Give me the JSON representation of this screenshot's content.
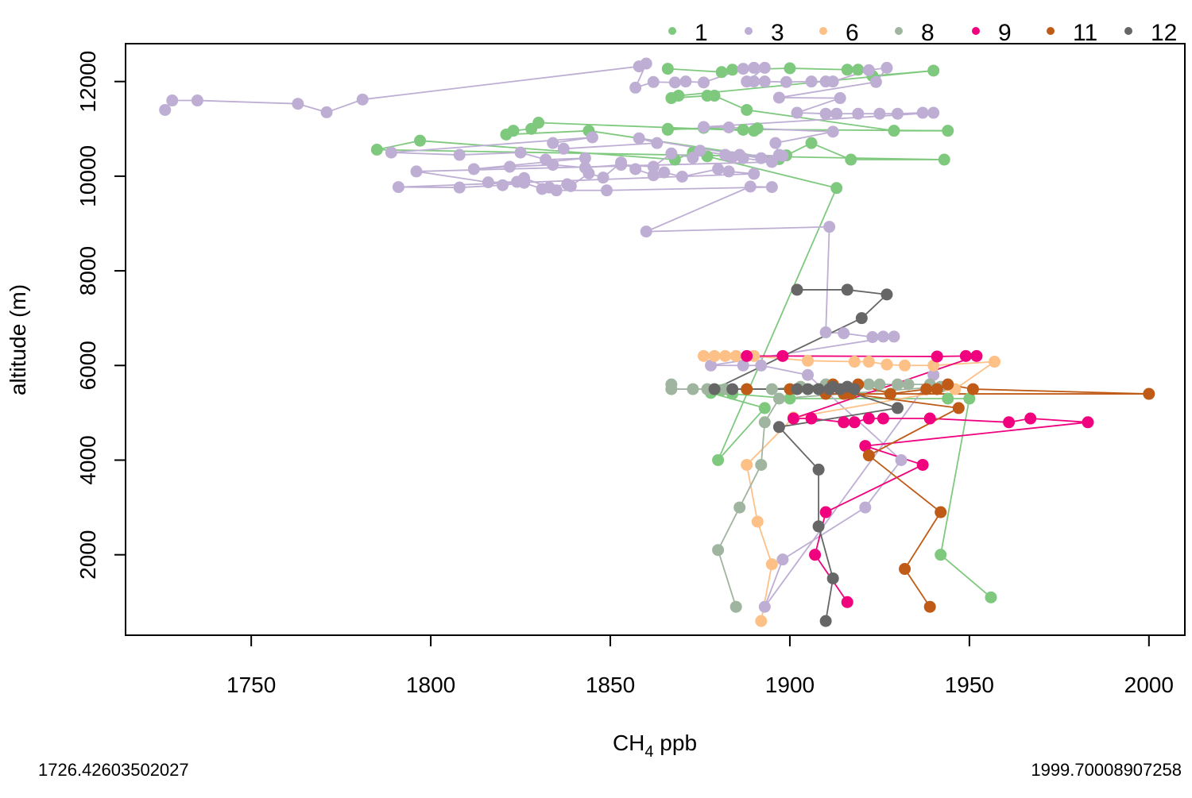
{
  "chart_data": {
    "type": "scatter",
    "xlabel_main": "CH",
    "xlabel_sub": "4",
    "xlabel_rest": " ppb",
    "ylabel": "altitude (m)",
    "xlim": [
      1715,
      2010
    ],
    "ylim": [
      300,
      12800
    ],
    "x_ticks": [
      1750,
      1800,
      1850,
      1900,
      1950,
      2000
    ],
    "x_tick_labels": [
      "1750",
      "1800",
      "1850",
      "1900",
      "1950",
      "2000"
    ],
    "y_ticks": [
      2000,
      4000,
      6000,
      8000,
      10000,
      12000
    ],
    "y_tick_labels": [
      "2000",
      "4000",
      "6000",
      "8000",
      "10000",
      "12000"
    ],
    "grid": false,
    "legend_position": "top",
    "footnote_left": "1726.42603502027",
    "footnote_right": "1999.70008907258",
    "series": [
      {
        "name": "1",
        "color": "#7fc97f",
        "points": [
          [
            1866,
            12270
          ],
          [
            1881,
            12200
          ],
          [
            1884,
            12250
          ],
          [
            1900,
            12280
          ],
          [
            1916,
            12250
          ],
          [
            1919,
            12250
          ],
          [
            1923,
            12120
          ],
          [
            1940,
            12230
          ],
          [
            1869,
            11700
          ],
          [
            1867,
            11650
          ],
          [
            1877,
            11700
          ],
          [
            1879,
            11700
          ],
          [
            1888,
            11400
          ],
          [
            1929,
            10960
          ],
          [
            1944,
            10960
          ],
          [
            1866,
            11000
          ],
          [
            1866,
            10980
          ],
          [
            1876,
            11020
          ],
          [
            1887,
            10980
          ],
          [
            1891,
            11010
          ],
          [
            1890,
            10960
          ],
          [
            1830,
            11130
          ],
          [
            1828,
            11000
          ],
          [
            1823,
            10960
          ],
          [
            1821,
            10880
          ],
          [
            1844,
            10960
          ],
          [
            1897,
            10360
          ],
          [
            1899,
            10440
          ],
          [
            1906,
            10700
          ],
          [
            1917,
            10350
          ],
          [
            1943,
            10350
          ],
          [
            1785,
            10560
          ],
          [
            1797,
            10750
          ],
          [
            1868,
            10350
          ],
          [
            1873,
            10500
          ],
          [
            1877,
            10420
          ],
          [
            1913,
            9750
          ],
          [
            1880,
            4000
          ],
          [
            1893,
            5100
          ],
          [
            1878,
            5420
          ],
          [
            1881,
            5480
          ],
          [
            1884,
            5400
          ],
          [
            1900,
            5300
          ],
          [
            1944,
            5300
          ],
          [
            1950,
            5300
          ],
          [
            1942,
            2000
          ],
          [
            1956,
            1100
          ]
        ]
      },
      {
        "name": "3",
        "color": "#beaed4",
        "points": [
          [
            1726,
            11400
          ],
          [
            1728,
            11600
          ],
          [
            1735,
            11600
          ],
          [
            1763,
            11530
          ],
          [
            1771,
            11350
          ],
          [
            1781,
            11620
          ],
          [
            1858,
            12320
          ],
          [
            1860,
            12380
          ],
          [
            1857,
            11870
          ],
          [
            1862,
            11990
          ],
          [
            1868,
            11980
          ],
          [
            1871,
            12000
          ],
          [
            1876,
            11980
          ],
          [
            1887,
            12270
          ],
          [
            1890,
            12290
          ],
          [
            1893,
            12290
          ],
          [
            1888,
            12000
          ],
          [
            1890,
            12000
          ],
          [
            1893,
            12000
          ],
          [
            1899,
            11990
          ],
          [
            1906,
            12000
          ],
          [
            1910,
            12000
          ],
          [
            1912,
            12000
          ],
          [
            1922,
            12240
          ],
          [
            1927,
            12290
          ],
          [
            1924,
            11990
          ],
          [
            1897,
            11660
          ],
          [
            1914,
            11650
          ],
          [
            1902,
            11340
          ],
          [
            1910,
            11320
          ],
          [
            1913,
            11320
          ],
          [
            1919,
            11320
          ],
          [
            1925,
            11320
          ],
          [
            1930,
            11320
          ],
          [
            1937,
            11340
          ],
          [
            1940,
            11340
          ],
          [
            1876,
            11040
          ],
          [
            1883,
            11030
          ],
          [
            1912,
            10940
          ],
          [
            1896,
            10700
          ],
          [
            1897,
            10450
          ],
          [
            1898,
            10430
          ],
          [
            1886,
            10450
          ],
          [
            1892,
            10380
          ],
          [
            1858,
            10800
          ],
          [
            1863,
            10700
          ],
          [
            1837,
            10580
          ],
          [
            1834,
            10700
          ],
          [
            1845,
            10820
          ],
          [
            1789,
            10500
          ],
          [
            1808,
            10450
          ],
          [
            1825,
            10500
          ],
          [
            1832,
            10350
          ],
          [
            1843,
            10380
          ],
          [
            1812,
            10150
          ],
          [
            1822,
            10200
          ],
          [
            1834,
            10240
          ],
          [
            1843,
            10180
          ],
          [
            1853,
            10240
          ],
          [
            1862,
            10200
          ],
          [
            1867,
            10480
          ],
          [
            1873,
            10390
          ],
          [
            1875,
            10540
          ],
          [
            1882,
            10450
          ],
          [
            1884,
            10400
          ],
          [
            1887,
            10380
          ],
          [
            1895,
            10300
          ],
          [
            1796,
            10100
          ],
          [
            1816,
            9870
          ],
          [
            1824,
            9880
          ],
          [
            1826,
            9960
          ],
          [
            1833,
            9760
          ],
          [
            1838,
            9830
          ],
          [
            1839,
            9790
          ],
          [
            1844,
            10060
          ],
          [
            1848,
            9970
          ],
          [
            1853,
            10290
          ],
          [
            1857,
            10150
          ],
          [
            1862,
            10020
          ],
          [
            1865,
            10080
          ],
          [
            1870,
            9990
          ],
          [
            1880,
            10150
          ],
          [
            1883,
            10100
          ],
          [
            1890,
            10050
          ],
          [
            1791,
            9770
          ],
          [
            1808,
            9760
          ],
          [
            1820,
            9810
          ],
          [
            1826,
            9860
          ],
          [
            1831,
            9730
          ],
          [
            1835,
            9700
          ],
          [
            1849,
            9700
          ],
          [
            1895,
            9770
          ],
          [
            1889,
            9780
          ],
          [
            1860,
            8830
          ],
          [
            1911,
            8930
          ],
          [
            1910,
            6700
          ],
          [
            1915,
            6680
          ],
          [
            1923,
            6600
          ],
          [
            1926,
            6610
          ],
          [
            1929,
            6610
          ],
          [
            1878,
            6000
          ],
          [
            1887,
            6000
          ],
          [
            1892,
            6000
          ],
          [
            1905,
            5800
          ],
          [
            1931,
            4000
          ],
          [
            1921,
            3000
          ],
          [
            1898,
            1900
          ],
          [
            1893,
            900
          ],
          [
            1940,
            5800
          ]
        ]
      },
      {
        "name": "6",
        "color": "#fdc086",
        "points": [
          [
            1876,
            6200
          ],
          [
            1879,
            6200
          ],
          [
            1882,
            6200
          ],
          [
            1885,
            6200
          ],
          [
            1890,
            6200
          ],
          [
            1905,
            6100
          ],
          [
            1918,
            6080
          ],
          [
            1922,
            6080
          ],
          [
            1927,
            6020
          ],
          [
            1932,
            6000
          ],
          [
            1940,
            6000
          ],
          [
            1957,
            6080
          ],
          [
            1946,
            5500
          ],
          [
            1901,
            4900
          ],
          [
            1888,
            3900
          ],
          [
            1891,
            2700
          ],
          [
            1895,
            1800
          ],
          [
            1892,
            600
          ]
        ]
      },
      {
        "name": "8",
        "color": "#9fb59f",
        "points": [
          [
            1867,
            5600
          ],
          [
            1867,
            5500
          ],
          [
            1873,
            5500
          ],
          [
            1877,
            5500
          ],
          [
            1882,
            5500
          ],
          [
            1888,
            5500
          ],
          [
            1895,
            5500
          ],
          [
            1903,
            5550
          ],
          [
            1910,
            5600
          ],
          [
            1916,
            5550
          ],
          [
            1922,
            5600
          ],
          [
            1925,
            5600
          ],
          [
            1930,
            5600
          ],
          [
            1933,
            5600
          ],
          [
            1939,
            5600
          ],
          [
            1942,
            5550
          ],
          [
            1897,
            5300
          ],
          [
            1893,
            4800
          ],
          [
            1892,
            3900
          ],
          [
            1886,
            3000
          ],
          [
            1880,
            2100
          ],
          [
            1885,
            900
          ]
        ]
      },
      {
        "name": "9",
        "color": "#f0027f",
        "points": [
          [
            1888,
            6200
          ],
          [
            1898,
            6200
          ],
          [
            1941,
            6190
          ],
          [
            1949,
            6200
          ],
          [
            1952,
            6200
          ],
          [
            1901,
            4880
          ],
          [
            1906,
            4880
          ],
          [
            1915,
            4800
          ],
          [
            1918,
            4800
          ],
          [
            1922,
            4880
          ],
          [
            1926,
            4880
          ],
          [
            1939,
            4880
          ],
          [
            1961,
            4800
          ],
          [
            1967,
            4880
          ],
          [
            1983,
            4800
          ],
          [
            1921,
            4300
          ],
          [
            1937,
            3900
          ],
          [
            1910,
            2900
          ],
          [
            1907,
            2000
          ],
          [
            1916,
            1000
          ]
        ]
      },
      {
        "name": "11",
        "color": "#bf5b17",
        "points": [
          [
            1888,
            5500
          ],
          [
            1900,
            5500
          ],
          [
            1912,
            5600
          ],
          [
            1919,
            5600
          ],
          [
            1928,
            5400
          ],
          [
            1938,
            5500
          ],
          [
            1941,
            5500
          ],
          [
            1944,
            5600
          ],
          [
            1951,
            5500
          ],
          [
            2000,
            5400
          ],
          [
            1910,
            5400
          ],
          [
            1915,
            5400
          ],
          [
            1917,
            5400
          ],
          [
            1947,
            5100
          ],
          [
            1922,
            4100
          ],
          [
            1942,
            2900
          ],
          [
            1932,
            1700
          ],
          [
            1939,
            900
          ]
        ]
      },
      {
        "name": "12",
        "color": "#666666",
        "points": [
          [
            1902,
            7600
          ],
          [
            1916,
            7600
          ],
          [
            1927,
            7500
          ],
          [
            1920,
            7000
          ],
          [
            1879,
            5500
          ],
          [
            1884,
            5500
          ],
          [
            1902,
            5500
          ],
          [
            1905,
            5500
          ],
          [
            1908,
            5500
          ],
          [
            1912,
            5550
          ],
          [
            1916,
            5550
          ],
          [
            1918,
            5500
          ],
          [
            1911,
            5500
          ],
          [
            1914,
            5500
          ],
          [
            1930,
            5100
          ],
          [
            1897,
            4700
          ],
          [
            1908,
            3800
          ],
          [
            1908,
            2600
          ],
          [
            1912,
            1500
          ],
          [
            1910,
            600
          ]
        ]
      }
    ]
  }
}
